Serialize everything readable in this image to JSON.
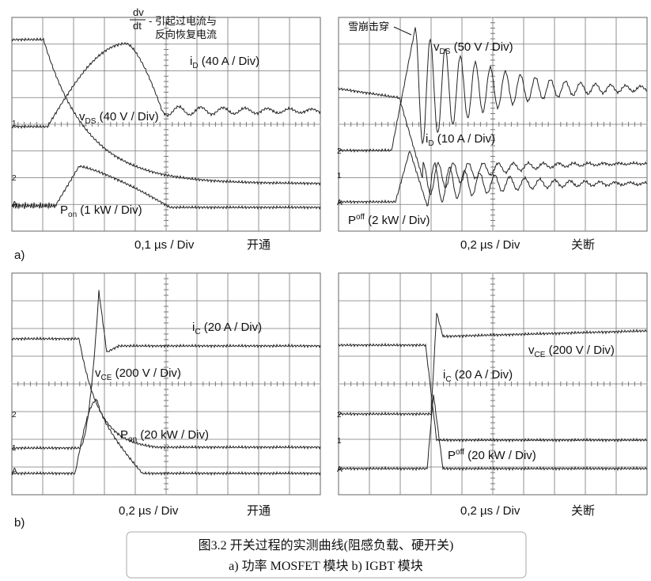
{
  "panels": [
    {
      "dvdt": {
        "num": "dv",
        "den": "dt",
        "rest": "- 引起过电流与",
        "line2": "反向恢复电流"
      },
      "labels": [
        {
          "main": "i",
          "sub": "D",
          "rest": " (40 A / Div)"
        },
        {
          "main": "v",
          "sub": "DS",
          "rest": " (40 V / Div)"
        },
        {
          "main": "P",
          "sub": "on",
          "rest": " (1 kW / Div)"
        }
      ],
      "markers": [
        "1",
        "2",
        "A"
      ],
      "time_base": "0,1 µs / Div",
      "mode": "开通",
      "tag": "a)"
    },
    {
      "note": "雪崩击穿",
      "labels": [
        {
          "main": "v",
          "sub": "DS",
          "rest": " (50 V / Div)"
        },
        {
          "main": "i",
          "sub": "D",
          "rest": " (10 A / Div)"
        },
        {
          "main": "P",
          "sub": "off",
          "rest": " (2 kW / Div)"
        }
      ],
      "markers": [
        "2",
        "1",
        "A"
      ],
      "time_base": "0,2 µs / Div",
      "mode": "关断"
    },
    {
      "labels": [
        {
          "main": "i",
          "sub": "C",
          "rest": " (20 A / Div)"
        },
        {
          "main": "v",
          "sub": "CE",
          "rest": " (200 V / Div)"
        },
        {
          "main": "P",
          "sub": "on",
          "rest": " (20 kW / Div)"
        }
      ],
      "markers": [
        "2",
        "1",
        "A"
      ],
      "time_base": "0,2 µs / Div",
      "mode": "开通",
      "tag": "b)"
    },
    {
      "labels": [
        {
          "main": "v",
          "sub": "CE",
          "rest": " (200 V / Div)"
        },
        {
          "main": "i",
          "sub": "C",
          "rest": " (20 A / Div)"
        },
        {
          "main": "P",
          "sub": "off",
          "rest": " (20 kW / Div)"
        }
      ],
      "markers": [
        "2",
        "1",
        "A"
      ],
      "time_base": "0,2 µs / Div",
      "mode": "关断"
    }
  ],
  "caption": {
    "line1": "图3.2  开关过程的实测曲线(阻感负载、硬开关)",
    "line2": "a) 功率 MOSFET 模块    b) IGBT 模块"
  }
}
